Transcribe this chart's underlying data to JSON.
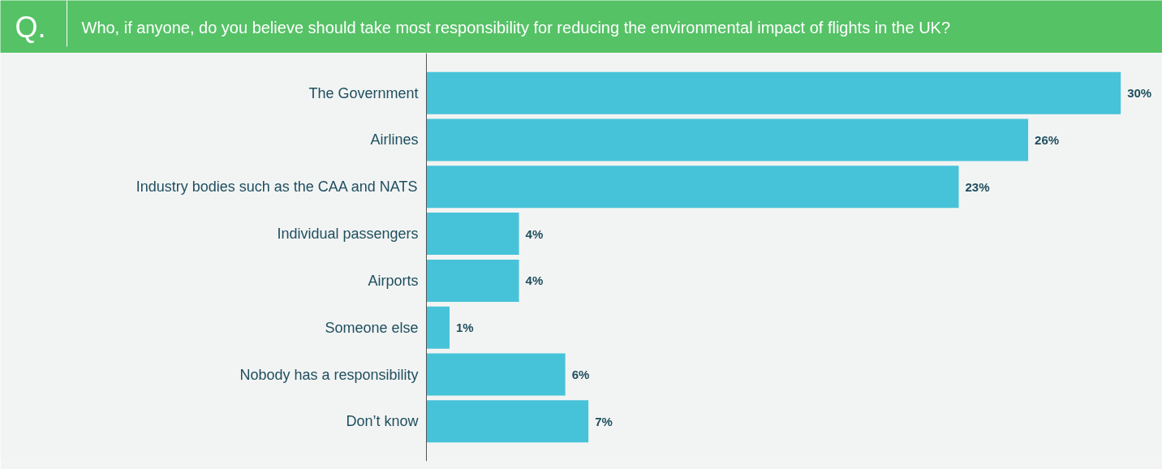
{
  "chart_data": {
    "type": "bar",
    "orientation": "horizontal",
    "title": "Who, if anyone, do you believe should take most responsibility for reducing the environmental impact of flights in the UK?",
    "annotations": [
      "Q."
    ],
    "categories": [
      "The Government",
      "Airlines",
      "Industry bodies such as the CAA and NATS",
      "Individual passengers",
      "Airports",
      "Someone else",
      "Nobody has a responsibility",
      "Don’t know"
    ],
    "series": [
      {
        "color": "#47c3d9",
        "values": [
          30,
          26,
          23,
          4,
          4,
          1,
          6,
          7
        ],
        "value_labels": [
          "30%",
          "26%",
          "23%",
          "4%",
          "4%",
          "1%",
          "6%",
          "7%"
        ]
      }
    ],
    "data_labels": true,
    "grid": false
  }
}
